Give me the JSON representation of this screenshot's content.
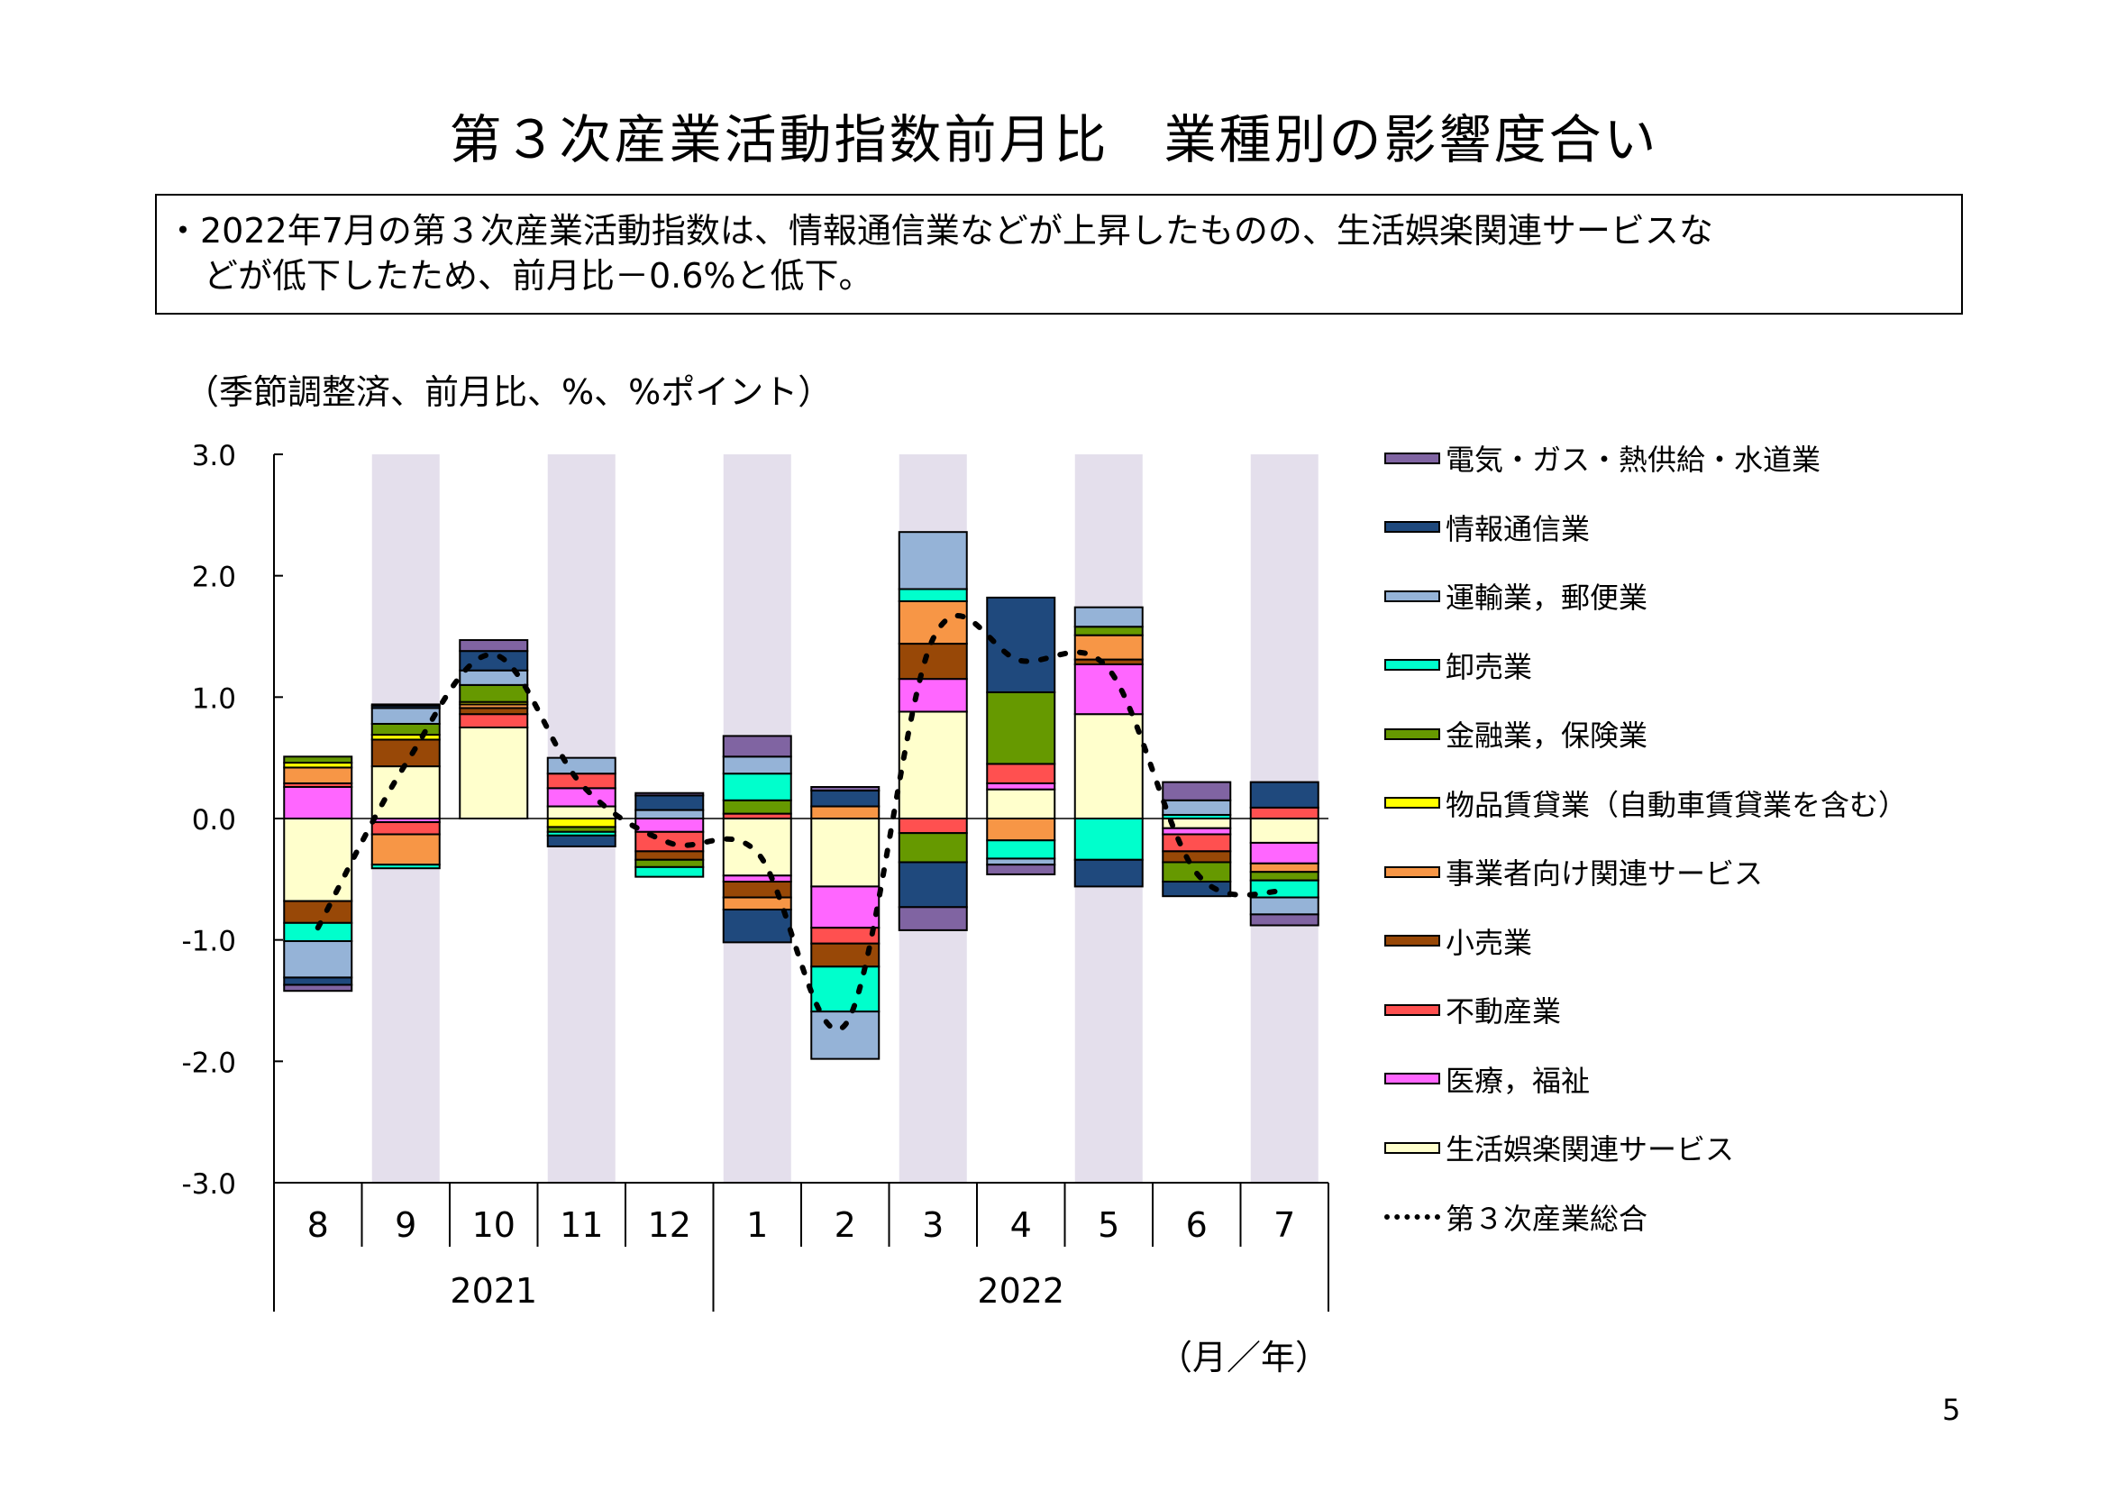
{
  "title": "第３次産業活動指数前月比　業種別の影響度合い",
  "summary": {
    "line1": "・2022年7月の第３次産業活動指数は、情報通信業などが上昇したものの、生活娯楽関連サービスな",
    "line2": "どが低下したため、前月比－0.6%と低下。"
  },
  "page_number": "5",
  "chart_data": {
    "type": "bar",
    "stacked": true,
    "ylabel": "（季節調整済、前月比、%、%ポイント）",
    "xlabel": "（月／年）",
    "ylim": [
      -3.0,
      3.0
    ],
    "yticks": [
      "3.0",
      "2.0",
      "1.0",
      "0.0",
      "-1.0",
      "-2.0",
      "-3.0"
    ],
    "ytick_values": [
      3,
      2,
      1,
      0,
      -1,
      -2,
      -3
    ],
    "categories": [
      "8",
      "9",
      "10",
      "11",
      "12",
      "1",
      "2",
      "3",
      "4",
      "5",
      "6",
      "7"
    ],
    "years": [
      {
        "label": "2021",
        "months": 5
      },
      {
        "label": "2022",
        "months": 7
      }
    ],
    "legend_position": "right",
    "series": [
      {
        "name": "電気・ガス・熱供給・水道業",
        "color": "#8064A2",
        "values": [
          -0.05,
          0.01,
          0.09,
          0,
          0.02,
          0.17,
          0.03,
          -0.19,
          -0.08,
          0,
          0.15,
          -0.09
        ]
      },
      {
        "name": "情報通信業",
        "color": "#1F497D",
        "values": [
          -0.06,
          0.02,
          0.16,
          -0.09,
          0.12,
          -0.27,
          0.13,
          -0.37,
          0.78,
          -0.22,
          -0.12,
          0.21
        ]
      },
      {
        "name": "運輸業，郵便業",
        "color": "#95B3D7",
        "values": [
          -0.3,
          0.13,
          0.12,
          0.13,
          0.07,
          0.14,
          -0.39,
          0.47,
          -0.05,
          0.16,
          0.12,
          -0.14
        ]
      },
      {
        "name": "卸売業",
        "color": "#00FFCC",
        "values": [
          -0.15,
          -0.03,
          0,
          -0.03,
          -0.08,
          0.22,
          -0.37,
          0.1,
          -0.15,
          -0.34,
          0.03,
          -0.14
        ]
      },
      {
        "name": "金融業，保険業",
        "color": "#669900",
        "values": [
          0.05,
          0.09,
          0.14,
          -0.04,
          -0.06,
          0.11,
          0,
          -0.24,
          0.59,
          0.07,
          -0.16,
          -0.07
        ]
      },
      {
        "name": "物品賃貸業（自動車賃貸業を含む）",
        "color": "#FFFF00",
        "values": [
          0.04,
          0.04,
          0.02,
          -0.07,
          0,
          0,
          0,
          0,
          0,
          0,
          0,
          0
        ]
      },
      {
        "name": "事業者向け関連サービス",
        "color": "#F79646",
        "values": [
          0.13,
          -0.25,
          0.03,
          0,
          0,
          -0.1,
          0.1,
          0.35,
          -0.18,
          0.2,
          0,
          -0.07
        ]
      },
      {
        "name": "小売業",
        "color": "#984807",
        "values": [
          -0.18,
          0.22,
          0.05,
          0,
          -0.07,
          -0.13,
          -0.19,
          0.29,
          0,
          0.04,
          -0.09,
          0
        ]
      },
      {
        "name": "不動産業",
        "color": "#FF5050",
        "values": [
          0.03,
          -0.1,
          0.11,
          0.12,
          -0.16,
          0.04,
          -0.13,
          -0.12,
          0.16,
          0,
          -0.14,
          0.09
        ]
      },
      {
        "name": "医療，福祉",
        "color": "#FF66FF",
        "values": [
          0.26,
          -0.03,
          0,
          0.15,
          -0.11,
          -0.05,
          -0.34,
          0.27,
          0.05,
          0.41,
          -0.05,
          -0.17
        ]
      },
      {
        "name": "生活娯楽関連サービス",
        "color": "#FFFFCC",
        "values": [
          -0.68,
          0.43,
          0.75,
          0.1,
          0,
          -0.47,
          -0.56,
          0.88,
          0.24,
          0.86,
          -0.08,
          -0.2
        ]
      }
    ],
    "total_line": {
      "name": "第３次産業総合",
      "type": "line",
      "style": "dotted",
      "color": "#000000",
      "values": [
        -0.9,
        0.45,
        1.35,
        0.28,
        -0.2,
        -0.28,
        -1.7,
        1.48,
        1.3,
        1.23,
        -0.45,
        -0.6
      ]
    },
    "shaded_band_color": "#E4DFEC"
  }
}
